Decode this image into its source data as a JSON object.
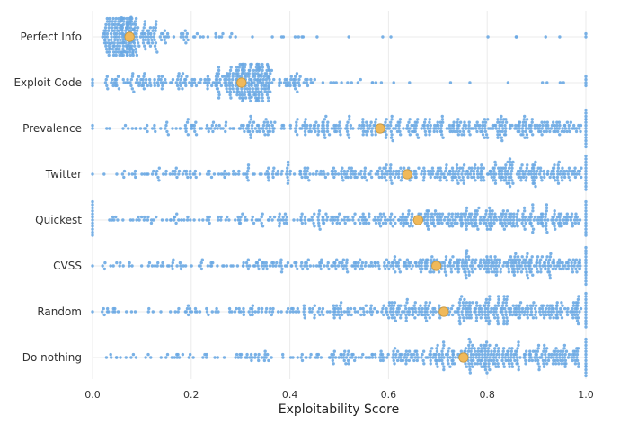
{
  "chart_data": {
    "type": "scatter",
    "subtype": "beeswarm",
    "title": "",
    "xlabel": "Exploitability Score",
    "ylabel": "",
    "xlim": [
      0,
      1
    ],
    "x_ticks": [
      "0.0",
      "0.2",
      "0.4",
      "0.6",
      "0.8",
      "1.0"
    ],
    "grid": true,
    "legend": "none",
    "colors": {
      "points": "#6aa9e3",
      "mean": "#f0b95a",
      "mean_stroke": "#c99840"
    },
    "categories": [
      "Perfect Info",
      "Exploit Code",
      "Prevalence",
      "Twitter",
      "Quickest",
      "CVSS",
      "Random",
      "Do nothing"
    ],
    "series": [
      {
        "category": "Perfect Info",
        "mean": 0.075,
        "distribution": {
          "zero": 0,
          "one": 2,
          "segments": [
            [
              0.02,
              0.05,
              60
            ],
            [
              0.05,
              0.09,
              140
            ],
            [
              0.09,
              0.13,
              45
            ],
            [
              0.13,
              0.2,
              22
            ],
            [
              0.2,
              0.3,
              14
            ],
            [
              0.3,
              0.5,
              9
            ],
            [
              0.5,
              0.95,
              8
            ]
          ]
        }
      },
      {
        "category": "Exploit Code",
        "mean": 0.302,
        "distribution": {
          "zero": 3,
          "one": 4,
          "segments": [
            [
              0.02,
              0.1,
              35
            ],
            [
              0.1,
              0.25,
              70
            ],
            [
              0.25,
              0.29,
              50
            ],
            [
              0.29,
              0.36,
              165
            ],
            [
              0.36,
              0.45,
              40
            ],
            [
              0.45,
              0.6,
              14
            ],
            [
              0.6,
              0.98,
              9
            ]
          ]
        }
      },
      {
        "category": "Prevalence",
        "mean": 0.583,
        "distribution": {
          "zero": 2,
          "one": 14,
          "segments": [
            [
              0.02,
              0.15,
              20
            ],
            [
              0.15,
              0.3,
              45
            ],
            [
              0.3,
              0.45,
              75
            ],
            [
              0.45,
              0.6,
              95
            ],
            [
              0.6,
              0.75,
              100
            ],
            [
              0.75,
              0.9,
              110
            ],
            [
              0.9,
              0.99,
              55
            ]
          ]
        }
      },
      {
        "category": "Twitter",
        "mean": 0.638,
        "distribution": {
          "zero": 1,
          "one": 12,
          "segments": [
            [
              0.02,
              0.15,
              25
            ],
            [
              0.15,
              0.3,
              40
            ],
            [
              0.3,
              0.45,
              55
            ],
            [
              0.45,
              0.6,
              70
            ],
            [
              0.6,
              0.75,
              95
            ],
            [
              0.75,
              0.9,
              130
            ],
            [
              0.9,
              0.99,
              60
            ]
          ]
        }
      },
      {
        "category": "Quickest",
        "mean": 0.66,
        "distribution": {
          "zero": 12,
          "one": 12,
          "segments": [
            [
              0.02,
              0.15,
              22
            ],
            [
              0.15,
              0.3,
              35
            ],
            [
              0.3,
              0.45,
              50
            ],
            [
              0.45,
              0.6,
              70
            ],
            [
              0.6,
              0.75,
              105
            ],
            [
              0.75,
              0.9,
              130
            ],
            [
              0.9,
              0.99,
              65
            ]
          ]
        }
      },
      {
        "category": "CVSS",
        "mean": 0.697,
        "distribution": {
          "zero": 1,
          "one": 14,
          "segments": [
            [
              0.02,
              0.15,
              22
            ],
            [
              0.15,
              0.3,
              30
            ],
            [
              0.3,
              0.45,
              55
            ],
            [
              0.45,
              0.6,
              60
            ],
            [
              0.6,
              0.75,
              100
            ],
            [
              0.75,
              0.9,
              135
            ],
            [
              0.9,
              0.99,
              70
            ]
          ]
        }
      },
      {
        "category": "Random",
        "mean": 0.712,
        "distribution": {
          "zero": 1,
          "one": 12,
          "segments": [
            [
              0.02,
              0.15,
              18
            ],
            [
              0.15,
              0.3,
              30
            ],
            [
              0.3,
              0.45,
              45
            ],
            [
              0.45,
              0.6,
              60
            ],
            [
              0.6,
              0.75,
              105
            ],
            [
              0.75,
              0.9,
              145
            ],
            [
              0.9,
              0.99,
              70
            ]
          ]
        }
      },
      {
        "category": "Do nothing",
        "mean": 0.752,
        "distribution": {
          "zero": 0,
          "one": 14,
          "segments": [
            [
              0.02,
              0.15,
              15
            ],
            [
              0.15,
              0.3,
              22
            ],
            [
              0.3,
              0.45,
              35
            ],
            [
              0.45,
              0.6,
              55
            ],
            [
              0.6,
              0.75,
              100
            ],
            [
              0.75,
              0.9,
              160
            ],
            [
              0.9,
              0.99,
              80
            ]
          ]
        }
      }
    ]
  }
}
